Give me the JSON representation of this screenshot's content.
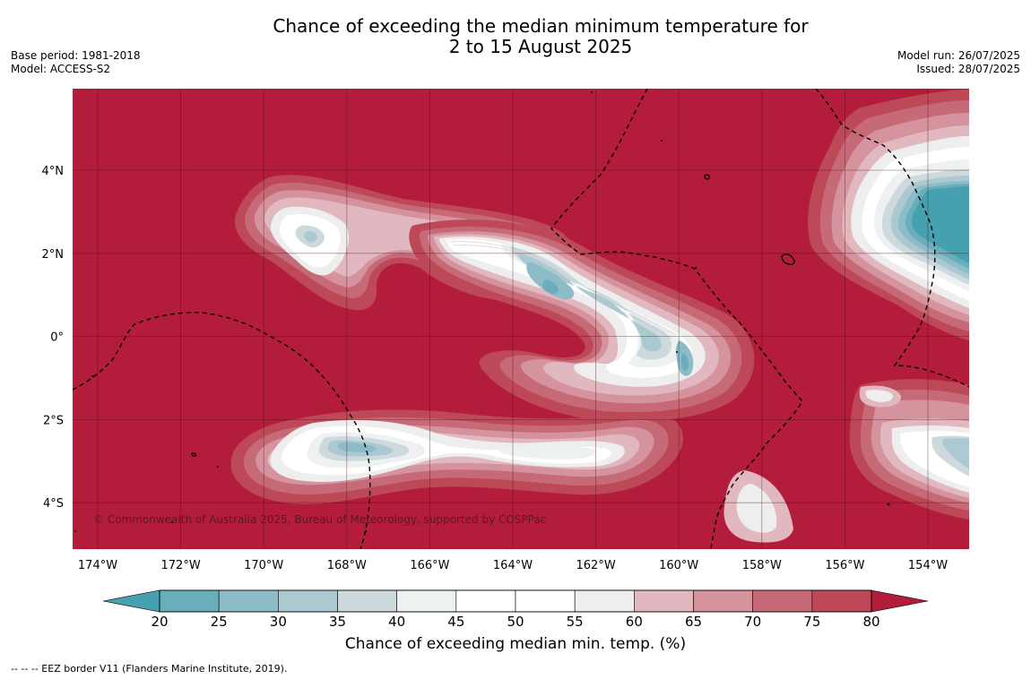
{
  "title": {
    "line1": "Chance of exceeding the median minimum temperature for",
    "line2": "2 to 15 August 2025"
  },
  "meta_left": [
    "Base period: 1981-2018",
    "Model: ACCESS-S2"
  ],
  "meta_right": [
    "Model run: 26/07/2025",
    "Issued: 28/07/2025"
  ],
  "map": {
    "lon_labels": [
      "174°W",
      "172°W",
      "170°W",
      "168°W",
      "166°W",
      "164°W",
      "162°W",
      "160°W",
      "158°W",
      "156°W",
      "154°W"
    ],
    "lat_labels": [
      "4°N",
      "2°N",
      "0°",
      "2°S",
      "4°S"
    ],
    "copyright": "© Commonwealth of Australia 2025, Bureau of Meteorology, supported by COSPPac",
    "background_color": "#b31c3a"
  },
  "colorbar": {
    "labels": [
      "20",
      "25",
      "30",
      "35",
      "40",
      "45",
      "50",
      "55",
      "60",
      "65",
      "70",
      "75",
      "80"
    ],
    "colors": [
      "#45a0b0",
      "#6aaebc",
      "#8cbcc7",
      "#abc9d0",
      "#cdd9dd",
      "#eef1f2",
      "#ffffff",
      "#ffffff",
      "#efeeee",
      "#e1b8bf",
      "#d5939d",
      "#c76a78",
      "#bd4858",
      "#b31c3a"
    ],
    "title": "Chance of exceeding median min. temp. (%)"
  },
  "footnote": "--  --  -- EEZ border V11 (Flanders Marine Institute, 2019)."
}
